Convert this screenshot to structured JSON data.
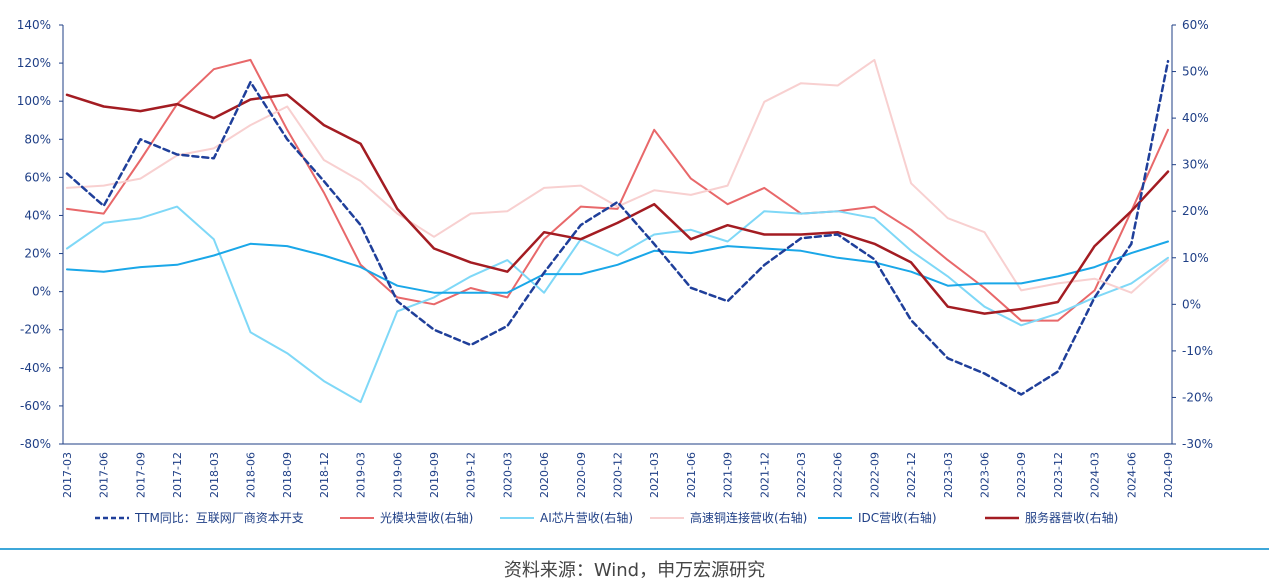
{
  "source_note": "资料来源：Wind，申万宏源研究",
  "chart_data": {
    "type": "line",
    "title": "",
    "xlabel": "",
    "ylabel": "",
    "grid": false,
    "legend_position": "bottom",
    "categories": [
      "2017-03",
      "2017-06",
      "2017-09",
      "2017-12",
      "2018-03",
      "2018-06",
      "2018-09",
      "2018-12",
      "2019-03",
      "2019-06",
      "2019-09",
      "2019-12",
      "2020-03",
      "2020-06",
      "2020-09",
      "2020-12",
      "2021-03",
      "2021-06",
      "2021-09",
      "2021-12",
      "2022-03",
      "2022-06",
      "2022-09",
      "2022-12",
      "2023-03",
      "2023-06",
      "2023-09",
      "2023-12",
      "2024-03",
      "2024-06",
      "2024-09"
    ],
    "y_left": {
      "min": -80,
      "max": 140,
      "step": 20,
      "ticks": [
        "140%",
        "120%",
        "100%",
        "80%",
        "60%",
        "40%",
        "20%",
        "0%",
        "-20%",
        "-40%",
        "-60%",
        "-80%"
      ]
    },
    "y_right": {
      "min": -30,
      "max": 60,
      "step": 10,
      "ticks": [
        "60%",
        "50%",
        "40%",
        "30%",
        "20%",
        "10%",
        "0%",
        "-10%",
        "-20%",
        "-30%"
      ]
    },
    "series": [
      {
        "name": "TTM同比：互联网厂商资本开支",
        "axis": "left",
        "color": "#1f3f9a",
        "dash": true,
        "width": 2.5,
        "values": [
          62,
          45,
          80,
          72,
          70,
          110,
          80,
          58,
          35,
          -5,
          -20,
          -28,
          -18,
          10,
          35,
          47,
          25,
          2,
          -5,
          14,
          28,
          30,
          17,
          -15,
          -35,
          -43,
          -54,
          -42,
          -3,
          25,
          121
        ]
      },
      {
        "name": "光模块营收(右轴)",
        "axis": "right",
        "color": "#e8686a",
        "dash": false,
        "width": 2,
        "values": [
          20.5,
          19.5,
          31,
          43,
          50.5,
          52.5,
          37.5,
          24,
          8.5,
          1.5,
          0,
          3.5,
          1.5,
          14,
          21,
          20.5,
          37.5,
          27,
          21.5,
          25,
          19.5,
          20,
          21,
          16,
          9.5,
          3.5,
          -3.5,
          -3.5,
          3,
          20,
          37.5
        ]
      },
      {
        "name": "AI芯片营收(右轴)",
        "axis": "right",
        "color": "#7fd8f7",
        "dash": false,
        "width": 2,
        "values": [
          12,
          17.5,
          18.5,
          21,
          14,
          -6,
          -10.5,
          -16.5,
          -21,
          -1.5,
          1.5,
          6,
          9.5,
          2.5,
          14,
          10.5,
          15,
          16,
          13.5,
          20,
          19.5,
          20,
          18.5,
          11.5,
          6,
          -0.5,
          -4.5,
          -2,
          1.5,
          4.5,
          10
        ]
      },
      {
        "name": "高速铜连接营收(右轴)",
        "axis": "right",
        "color": "#f8d0d0",
        "dash": false,
        "width": 2,
        "values": [
          25,
          25.5,
          27,
          32,
          33.5,
          38.5,
          42.5,
          31,
          26.5,
          19.5,
          14.5,
          19.5,
          20,
          25,
          25.5,
          21,
          24.5,
          23.5,
          25.5,
          43.5,
          47.5,
          47,
          52.5,
          26,
          18.5,
          15.5,
          3,
          4.5,
          5.5,
          2.5,
          9.5
        ]
      },
      {
        "name": "IDC营收(右轴)",
        "axis": "right",
        "color": "#1aa7e8",
        "dash": false,
        "width": 2,
        "values": [
          7.5,
          7,
          8,
          8.5,
          10.5,
          13,
          12.5,
          10.5,
          8,
          4,
          2.5,
          2.5,
          2.5,
          6.5,
          6.5,
          8.5,
          11.5,
          11,
          12.5,
          12,
          11.5,
          10,
          9,
          7,
          4,
          4.5,
          4.5,
          6,
          8,
          11,
          13.5
        ]
      },
      {
        "name": "服务器营收(右轴)",
        "axis": "right",
        "color": "#a31c22",
        "dash": false,
        "width": 2.5,
        "values": [
          45,
          42.5,
          41.5,
          43,
          40,
          44,
          45,
          38.5,
          34.5,
          20.5,
          12,
          9,
          7,
          15.5,
          14,
          17.5,
          21.5,
          14,
          17,
          15,
          15,
          15.5,
          13,
          9,
          -0.5,
          -2,
          -1,
          0.5,
          12.5,
          20,
          28.5
        ]
      }
    ]
  }
}
